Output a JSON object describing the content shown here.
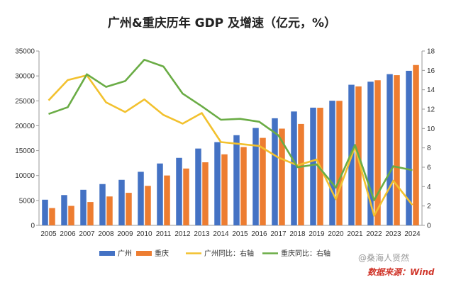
{
  "chart_data": {
    "type": "bar",
    "title": "广州&重庆历年 GDP 及增速（亿元，%）",
    "categories": [
      "2005",
      "2006",
      "2007",
      "2008",
      "2009",
      "2010",
      "2011",
      "2012",
      "2013",
      "2014",
      "2015",
      "2016",
      "2017",
      "2018",
      "2019",
      "2020",
      "2021",
      "2022",
      "2023",
      "2024"
    ],
    "y_left_ticks": [
      "0",
      "5000",
      "10000",
      "15000",
      "20000",
      "25000",
      "30000",
      "35000"
    ],
    "y_right_ticks": [
      "0",
      "2",
      "4",
      "6",
      "8",
      "10",
      "12",
      "14",
      "16",
      "18"
    ],
    "ylim_left": [
      0,
      35000
    ],
    "ylim_right": [
      0,
      18
    ],
    "grid": false,
    "legend_position": "bottom",
    "series": [
      {
        "name": "广州",
        "kind": "bar",
        "axis": "left",
        "color": "#4472c4",
        "values": [
          5150,
          6080,
          7140,
          8290,
          9140,
          10750,
          12420,
          13550,
          15420,
          16710,
          18100,
          19550,
          21500,
          22860,
          23630,
          25020,
          28230,
          28840,
          30360,
          31030
        ]
      },
      {
        "name": "重庆",
        "kind": "bar",
        "axis": "left",
        "color": "#ed7d31",
        "values": [
          3470,
          3910,
          4680,
          5800,
          6530,
          7930,
          10010,
          11410,
          12660,
          14260,
          15720,
          17560,
          19420,
          20360,
          23610,
          25000,
          27890,
          29130,
          30150,
          32190
        ]
      },
      {
        "name": "广州同比：右轴",
        "kind": "line",
        "axis": "right",
        "color": "#f2c12e",
        "values": [
          12.9,
          15.0,
          15.5,
          12.7,
          11.7,
          13.0,
          11.4,
          10.5,
          11.6,
          8.6,
          8.4,
          8.2,
          7.0,
          6.2,
          6.8,
          2.7,
          8.1,
          1.0,
          4.6,
          2.1
        ]
      },
      {
        "name": "重庆同比：右轴",
        "kind": "line",
        "axis": "right",
        "color": "#6aac45",
        "values": [
          11.5,
          12.2,
          15.6,
          14.3,
          14.9,
          17.1,
          16.4,
          13.6,
          12.3,
          10.9,
          11.0,
          10.7,
          9.3,
          6.0,
          6.3,
          3.9,
          8.3,
          2.6,
          6.1,
          5.7
        ]
      }
    ]
  },
  "watermark": {
    "source_line1": "@桑海人贤然",
    "source_line2": "数据来源：Wind"
  }
}
